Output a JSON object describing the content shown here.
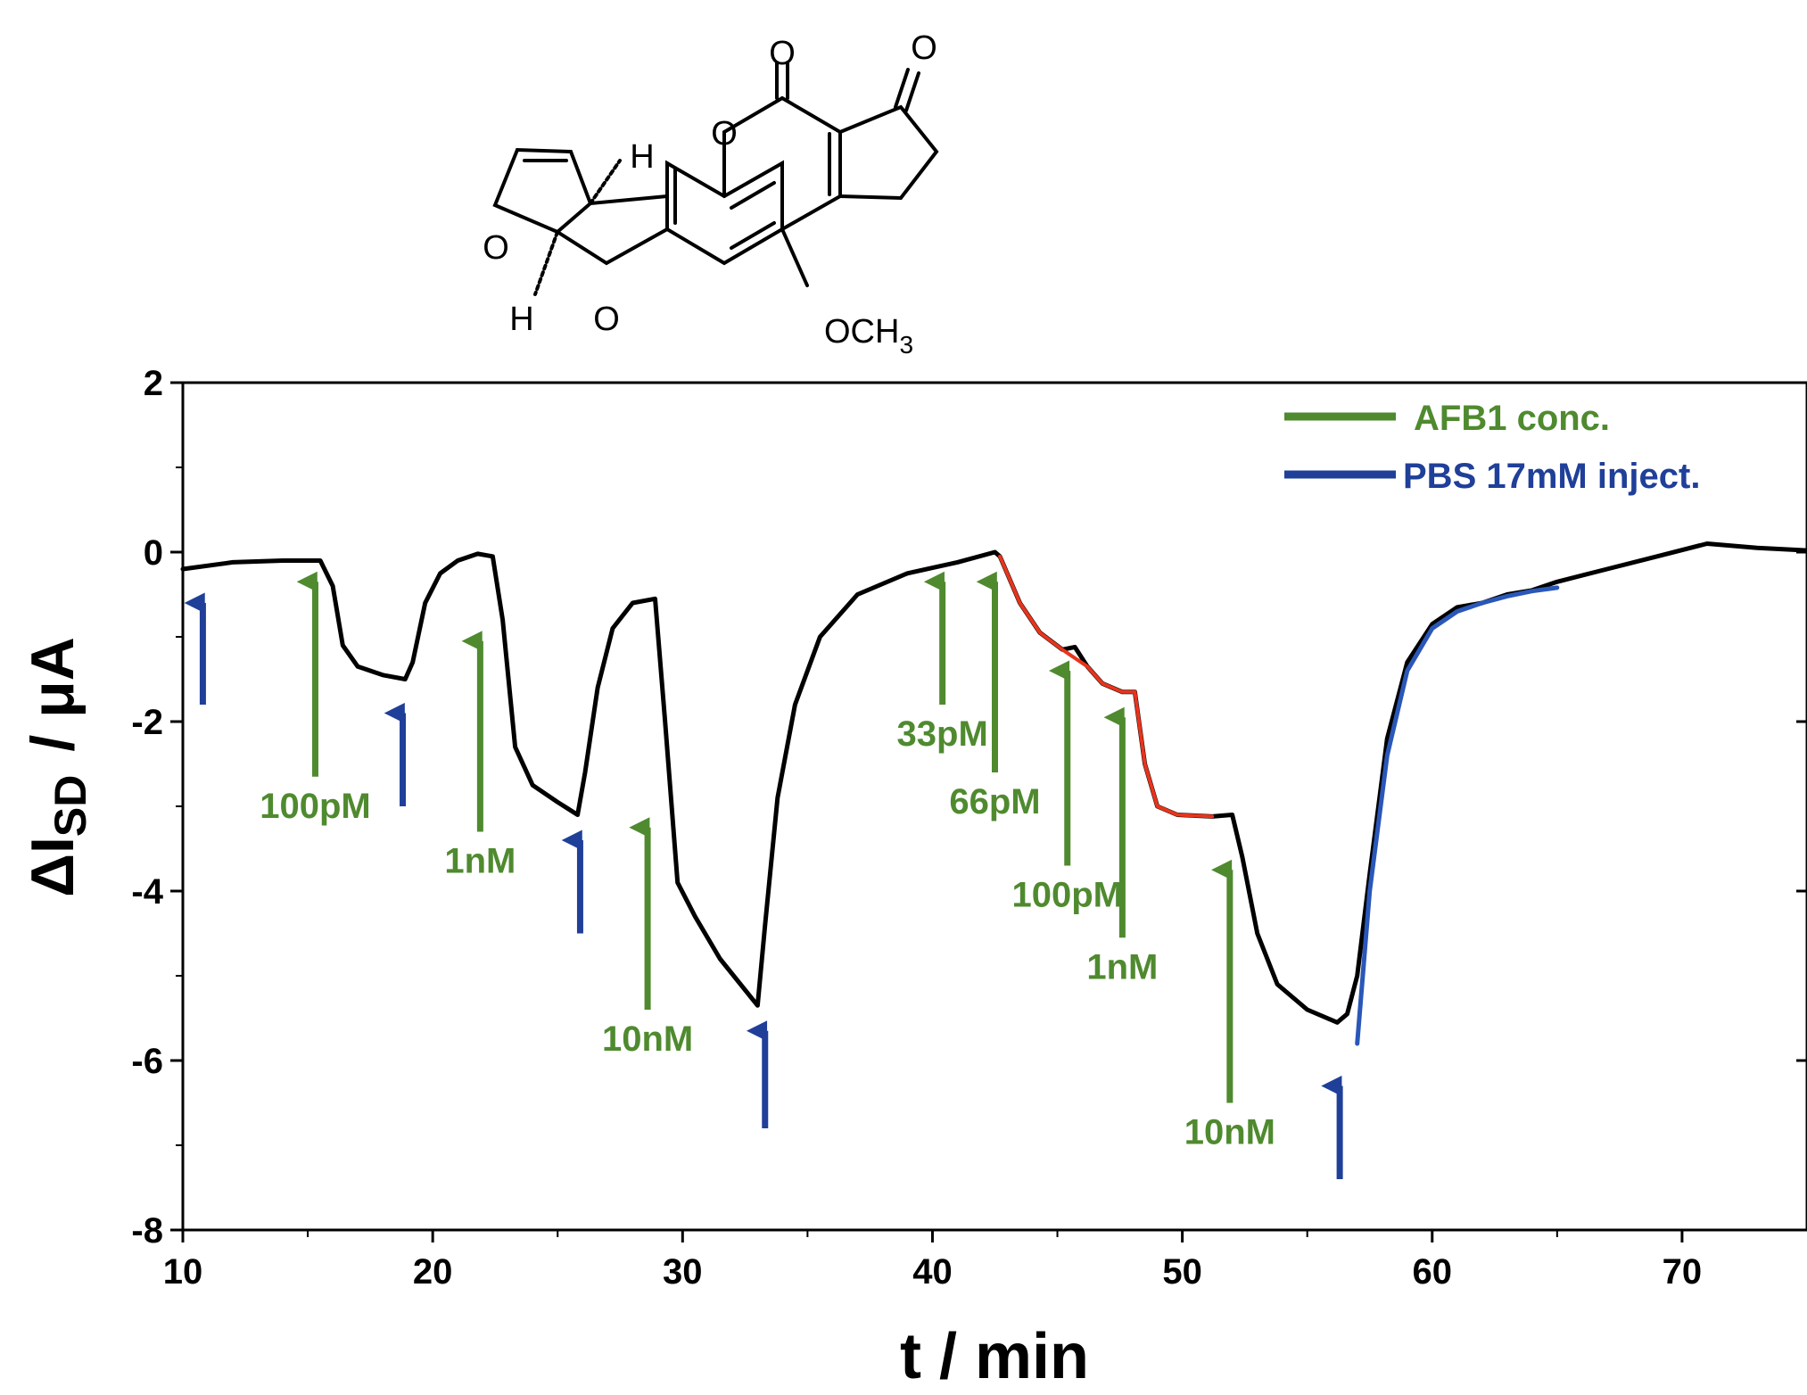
{
  "molecule": {
    "atoms": {
      "o_carbonyl_1": "O",
      "o_carbonyl_2": "O",
      "o_lactone": "O",
      "o_furan_1": "O",
      "o_furan_2": "O",
      "h_top": "H",
      "h_bottom": "H",
      "methoxy": "OCH",
      "methoxy_sub": "3"
    }
  },
  "colors": {
    "trace": "#000000",
    "afb1": "#4f8a2f",
    "pbs": "#1f3f99",
    "fit_red": "#e8341c",
    "fit_blue": "#2a57b8"
  },
  "chart_data": {
    "type": "line",
    "xlabel": "t / min",
    "ylabel_main": "ΔI",
    "ylabel_sub": "SD",
    "ylabel_unit": "/ μA",
    "xlim": [
      10,
      75
    ],
    "ylim": [
      -8,
      2
    ],
    "xticks": [
      10,
      20,
      30,
      40,
      50,
      60,
      70
    ],
    "yticks": [
      2,
      0,
      -2,
      -4,
      -6,
      -8
    ],
    "grid": false,
    "legend": {
      "position": "top-right",
      "entries": [
        {
          "label": "AFB1 conc.",
          "color": "#4f8a2f"
        },
        {
          "label": "PBS 17mM inject.",
          "color": "#1f3f99"
        }
      ]
    },
    "series": [
      {
        "color": "#000000",
        "points": [
          [
            10,
            -0.2
          ],
          [
            12,
            -0.12
          ],
          [
            14,
            -0.1
          ],
          [
            15.5,
            -0.1
          ],
          [
            16.0,
            -0.4
          ],
          [
            16.4,
            -1.1
          ],
          [
            17,
            -1.35
          ],
          [
            18,
            -1.45
          ],
          [
            18.9,
            -1.5
          ],
          [
            19.2,
            -1.3
          ],
          [
            19.7,
            -0.6
          ],
          [
            20.3,
            -0.25
          ],
          [
            21,
            -0.1
          ],
          [
            21.8,
            -0.02
          ],
          [
            22.4,
            -0.05
          ],
          [
            22.8,
            -0.8
          ],
          [
            23.3,
            -2.3
          ],
          [
            24,
            -2.75
          ],
          [
            25,
            -2.95
          ],
          [
            25.8,
            -3.1
          ],
          [
            26.1,
            -2.6
          ],
          [
            26.6,
            -1.6
          ],
          [
            27.2,
            -0.9
          ],
          [
            28,
            -0.6
          ],
          [
            28.9,
            -0.55
          ],
          [
            29.3,
            -2.0
          ],
          [
            29.8,
            -3.9
          ],
          [
            30.5,
            -4.3
          ],
          [
            31.5,
            -4.8
          ],
          [
            33.0,
            -5.35
          ],
          [
            33.3,
            -4.4
          ],
          [
            33.8,
            -2.9
          ],
          [
            34.5,
            -1.8
          ],
          [
            35.5,
            -1.0
          ],
          [
            37,
            -0.5
          ],
          [
            39,
            -0.25
          ],
          [
            41,
            -0.12
          ],
          [
            42.5,
            0.0
          ],
          [
            42.7,
            -0.05
          ],
          [
            43.5,
            -0.6
          ],
          [
            44.3,
            -0.95
          ],
          [
            45.2,
            -1.15
          ],
          [
            45.7,
            -1.12
          ],
          [
            46.2,
            -1.35
          ],
          [
            46.8,
            -1.55
          ],
          [
            47.6,
            -1.65
          ],
          [
            48.1,
            -1.65
          ],
          [
            48.5,
            -2.5
          ],
          [
            49.0,
            -3.0
          ],
          [
            49.8,
            -3.1
          ],
          [
            51.2,
            -3.12
          ],
          [
            52.0,
            -3.1
          ],
          [
            52.4,
            -3.6
          ],
          [
            53.0,
            -4.5
          ],
          [
            53.8,
            -5.1
          ],
          [
            55,
            -5.4
          ],
          [
            56.2,
            -5.55
          ],
          [
            56.6,
            -5.45
          ],
          [
            57.0,
            -5.0
          ],
          [
            57.5,
            -3.8
          ],
          [
            58.2,
            -2.2
          ],
          [
            59,
            -1.3
          ],
          [
            60,
            -0.85
          ],
          [
            61,
            -0.65
          ],
          [
            62,
            -0.6
          ],
          [
            63,
            -0.5
          ],
          [
            64,
            -0.45
          ],
          [
            65,
            -0.35
          ],
          [
            67,
            -0.2
          ],
          [
            69,
            -0.05
          ],
          [
            71,
            0.1
          ],
          [
            73,
            0.05
          ],
          [
            75,
            0.02
          ]
        ]
      },
      {
        "color": "#e8341c",
        "points": [
          [
            42.7,
            -0.05
          ],
          [
            43.5,
            -0.6
          ],
          [
            44.3,
            -0.95
          ],
          [
            45.2,
            -1.15
          ],
          [
            46.2,
            -1.35
          ],
          [
            46.8,
            -1.55
          ],
          [
            47.6,
            -1.65
          ],
          [
            48.1,
            -1.65
          ],
          [
            48.5,
            -2.5
          ],
          [
            49.0,
            -3.0
          ],
          [
            49.8,
            -3.1
          ],
          [
            51.2,
            -3.12
          ]
        ]
      },
      {
        "color": "#2a57b8",
        "points": [
          [
            57.0,
            -5.8
          ],
          [
            57.5,
            -4.0
          ],
          [
            58.2,
            -2.4
          ],
          [
            59,
            -1.4
          ],
          [
            60,
            -0.9
          ],
          [
            61,
            -0.7
          ],
          [
            62,
            -0.6
          ],
          [
            63,
            -0.52
          ],
          [
            64,
            -0.46
          ],
          [
            65,
            -0.42
          ]
        ]
      }
    ],
    "annotations": {
      "afb1_arrows": [
        {
          "x": 15.3,
          "y_tail": -2.65,
          "y_head": -0.35,
          "label": "100pM"
        },
        {
          "x": 21.9,
          "y_tail": -3.3,
          "y_head": -1.05,
          "label": "1nM"
        },
        {
          "x": 28.6,
          "y_tail": -5.4,
          "y_head": -3.25,
          "label": "10nM"
        },
        {
          "x": 40.4,
          "y_tail": -1.8,
          "y_head": -0.35,
          "label": "33pM"
        },
        {
          "x": 42.5,
          "y_tail": -2.6,
          "y_head": -0.35,
          "label": "66pM"
        },
        {
          "x": 45.4,
          "y_tail": -3.7,
          "y_head": -1.4,
          "label": "100pM"
        },
        {
          "x": 47.6,
          "y_tail": -4.55,
          "y_head": -1.95,
          "label": "1nM"
        },
        {
          "x": 51.9,
          "y_tail": -6.5,
          "y_head": -3.75,
          "label": "10nM"
        }
      ],
      "pbs_arrows": [
        {
          "x": 10.8,
          "y_tail": -1.8,
          "y_head": -0.6
        },
        {
          "x": 18.8,
          "y_tail": -3.0,
          "y_head": -1.9
        },
        {
          "x": 25.9,
          "y_tail": -4.5,
          "y_head": -3.4
        },
        {
          "x": 33.3,
          "y_tail": -6.8,
          "y_head": -5.65
        },
        {
          "x": 56.3,
          "y_tail": -7.4,
          "y_head": -6.3
        }
      ]
    }
  }
}
